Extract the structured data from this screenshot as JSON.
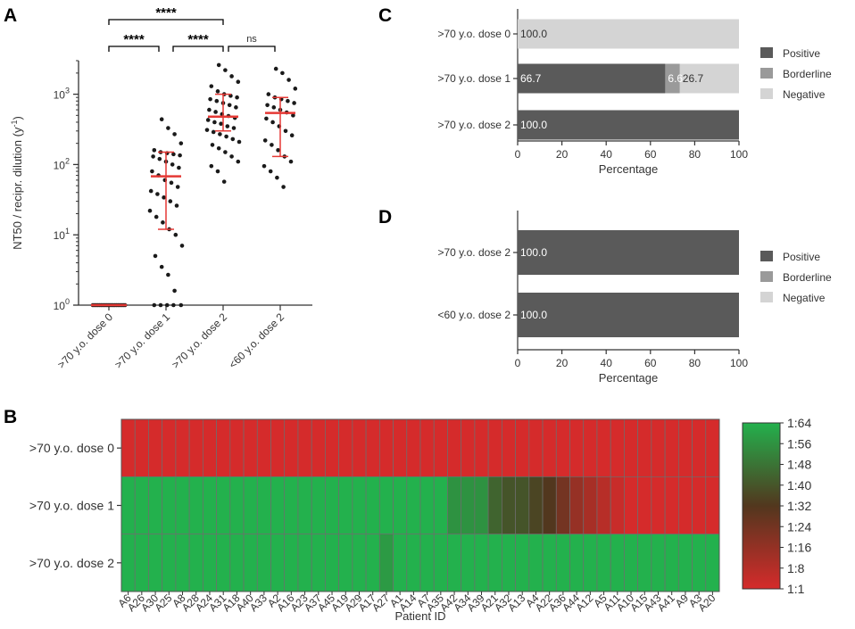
{
  "panels": {
    "a": "A",
    "b": "B",
    "c": "C",
    "d": "D"
  },
  "colors": {
    "positive": "#5a5a5a",
    "borderline": "#9a9a9a",
    "negative": "#d4d4d4",
    "heat_low": "#d52b2b",
    "heat_high": "#23b14d",
    "median": "#e53935",
    "dot": "#1a1a1a"
  },
  "chart_data": [
    {
      "id": "A",
      "type": "scatter",
      "ylabel": "NT50 / recipr. dilution (y",
      "ylabel_sup": "-1",
      "ylabel_end": ")",
      "yscale": "log",
      "ylim": [
        1,
        3000
      ],
      "yticks": [
        {
          "base": "10",
          "exp": "0",
          "value": 1
        },
        {
          "base": "10",
          "exp": "1",
          "value": 10
        },
        {
          "base": "10",
          "exp": "2",
          "value": 100
        },
        {
          "base": "10",
          "exp": "3",
          "value": 1000
        }
      ],
      "categories": [
        ">70 y.o. dose 0",
        ">70 y.o. dose 1",
        ">70 y.o. dose 2",
        "<60 y.o. dose 2"
      ],
      "groups": [
        {
          "values": [
            1,
            1,
            1,
            1,
            1,
            1,
            1,
            1,
            1,
            1,
            1,
            1,
            1,
            1,
            1,
            1,
            1,
            1,
            1,
            1
          ],
          "median": 1,
          "iqr": [
            1,
            1
          ]
        },
        {
          "values": [
            440,
            330,
            270,
            200,
            160,
            150,
            145,
            140,
            135,
            130,
            120,
            110,
            100,
            90,
            80,
            70,
            60,
            55,
            48,
            42,
            38,
            34,
            30,
            26,
            22,
            18,
            15,
            12,
            10,
            7,
            5,
            3.5,
            2.7,
            1.6,
            1,
            1,
            1,
            1,
            1
          ],
          "median": 68,
          "iqr": [
            12,
            150
          ]
        },
        {
          "values": [
            2600,
            2200,
            1800,
            1500,
            1300,
            1100,
            1000,
            950,
            900,
            850,
            800,
            750,
            700,
            650,
            600,
            560,
            520,
            490,
            460,
            430,
            400,
            380,
            350,
            330,
            310,
            290,
            270,
            250,
            230,
            210,
            190,
            170,
            150,
            130,
            110,
            95,
            80,
            57
          ],
          "median": 480,
          "iqr": [
            300,
            1000
          ]
        },
        {
          "values": [
            2300,
            2000,
            1600,
            1200,
            1000,
            900,
            850,
            800,
            750,
            700,
            650,
            600,
            550,
            500,
            450,
            400,
            350,
            300,
            260,
            220,
            190,
            160,
            130,
            110,
            95,
            80,
            65,
            48
          ],
          "median": 540,
          "iqr": [
            130,
            900
          ]
        }
      ],
      "significance": [
        {
          "from": 0,
          "to": 2,
          "label": "****"
        },
        {
          "from": 0,
          "to": 1,
          "label": "****"
        },
        {
          "from": 1,
          "to": 2,
          "label": "****"
        },
        {
          "from": 2,
          "to": 3,
          "label": "ns"
        }
      ]
    },
    {
      "id": "C",
      "type": "bar",
      "orientation": "horizontal-stacked",
      "xlabel": "Percentage",
      "xlim": [
        0,
        100
      ],
      "xticks": [
        "0",
        "20",
        "40",
        "60",
        "80",
        "100"
      ],
      "categories": [
        ">70 y.o. dose 0",
        ">70 y.o. dose 1",
        ">70 y.o. dose 2"
      ],
      "series": [
        {
          "name": "Positive",
          "values": [
            0,
            66.7,
            100.0
          ]
        },
        {
          "name": "Borderline",
          "values": [
            0,
            6.6,
            0
          ]
        },
        {
          "name": "Negative",
          "values": [
            100.0,
            26.7,
            0
          ]
        }
      ],
      "labels": [
        [
          {
            "series": "Negative",
            "text": "100.0"
          }
        ],
        [
          {
            "series": "Positive",
            "text": "66.7"
          },
          {
            "series": "Borderline",
            "text": "6.6"
          },
          {
            "series": "Negative",
            "text": "26.7"
          }
        ],
        [
          {
            "series": "Positive",
            "text": "100.0"
          }
        ]
      ],
      "legend": [
        "Positive",
        "Borderline",
        "Negative"
      ]
    },
    {
      "id": "D",
      "type": "bar",
      "orientation": "horizontal-stacked",
      "xlabel": "Percentage",
      "xlim": [
        0,
        100
      ],
      "xticks": [
        "0",
        "20",
        "40",
        "60",
        "80",
        "100"
      ],
      "categories": [
        ">70 y.o. dose 2",
        "<60 y.o. dose 2"
      ],
      "series": [
        {
          "name": "Positive",
          "values": [
            100.0,
            100.0
          ]
        },
        {
          "name": "Borderline",
          "values": [
            0,
            0
          ]
        },
        {
          "name": "Negative",
          "values": [
            0,
            0
          ]
        }
      ],
      "labels": [
        [
          {
            "series": "Positive",
            "text": "100.0"
          }
        ],
        [
          {
            "series": "Positive",
            "text": "100.0"
          }
        ]
      ],
      "legend": [
        "Positive",
        "Borderline",
        "Negative"
      ]
    },
    {
      "id": "B",
      "type": "heatmap",
      "xlabel": "Patient ID",
      "rows": [
        ">70 y.o. dose 0",
        ">70 y.o. dose 1",
        ">70 y.o. dose 2"
      ],
      "columns": [
        "A6",
        "A26",
        "A30",
        "A25",
        "A8",
        "A28",
        "A24",
        "A31",
        "A18",
        "A40",
        "A33",
        "A2",
        "A16",
        "A23",
        "A37",
        "A45",
        "A19",
        "A29",
        "A17",
        "A27",
        "A1",
        "A14",
        "A7",
        "A35",
        "A42",
        "A34",
        "A39",
        "A21",
        "A32",
        "A13",
        "A4",
        "A22",
        "A36",
        "A44",
        "A12",
        "A5",
        "A11",
        "A10",
        "A15",
        "A43",
        "A41",
        "A9",
        "A3",
        "A20"
      ],
      "values": [
        [
          1,
          1,
          1,
          1,
          1,
          1,
          1,
          1,
          1,
          1,
          1,
          1,
          1,
          1,
          1,
          1,
          1,
          1,
          1,
          1,
          1,
          1,
          1,
          1,
          1,
          1,
          1,
          1,
          1,
          1,
          1,
          1,
          1,
          1,
          1,
          1,
          1,
          1,
          1,
          1,
          1,
          1,
          1,
          1
        ],
        [
          64,
          64,
          64,
          64,
          64,
          64,
          64,
          64,
          64,
          64,
          64,
          64,
          64,
          64,
          64,
          64,
          64,
          64,
          64,
          64,
          64,
          64,
          64,
          64,
          56,
          56,
          56,
          44,
          40,
          40,
          36,
          32,
          24,
          16,
          12,
          8,
          4,
          1,
          1,
          1,
          1,
          1,
          1,
          1
        ],
        [
          64,
          64,
          64,
          64,
          64,
          64,
          64,
          64,
          64,
          64,
          64,
          64,
          64,
          64,
          64,
          64,
          64,
          64,
          64,
          58,
          64,
          64,
          64,
          64,
          64,
          64,
          64,
          64,
          64,
          64,
          64,
          64,
          64,
          64,
          64,
          64,
          64,
          64,
          64,
          64,
          64,
          64,
          64,
          64
        ]
      ],
      "colorbar": [
        "1:64",
        "1:56",
        "1:48",
        "1:40",
        "1:32",
        "1:24",
        "1:16",
        "1:8",
        "1:1"
      ]
    }
  ]
}
